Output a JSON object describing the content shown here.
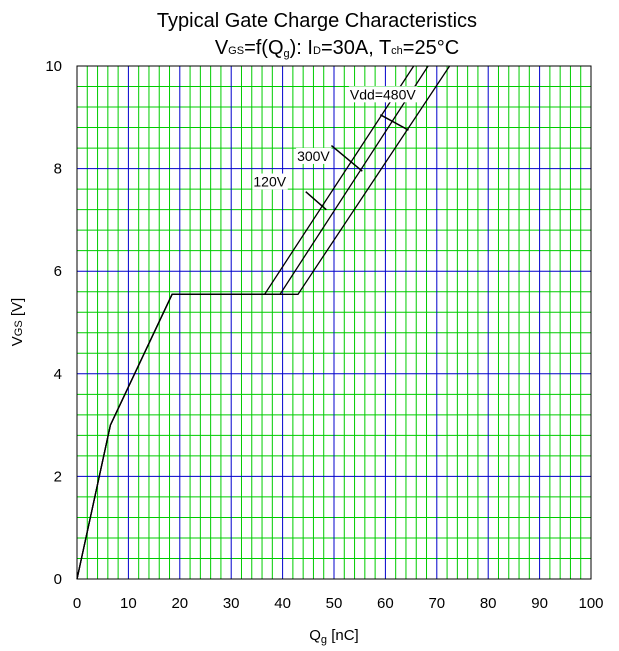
{
  "chart_data": {
    "type": "line",
    "title": "Typical Gate Charge Characteristics",
    "subtitle": {
      "vgs_main": "V",
      "vgs_sub": "GS",
      "eq": "=f(Q",
      "qg_sub": "g",
      "close": "): I",
      "id_sub": "D",
      "id_val": "=30A, T",
      "tch_sub": "ch",
      "tch_val": "=25°C"
    },
    "xlabel": {
      "main": "Q",
      "sub": "g",
      "rest": " [nC]"
    },
    "ylabel": {
      "main": "V",
      "sub": "GS",
      "rest": " [V]"
    },
    "xlim": [
      0,
      100
    ],
    "ylim": [
      0,
      10
    ],
    "xticks": [
      "0",
      "10",
      "20",
      "30",
      "40",
      "50",
      "60",
      "70",
      "80",
      "90",
      "100"
    ],
    "yticks": [
      "0",
      "2",
      "4",
      "6",
      "8",
      "10"
    ],
    "grid": true,
    "colors": {
      "major_grid": "#0000cc",
      "minor_grid": "#00cc00",
      "line": "#000000"
    },
    "series": [
      {
        "name": "120V",
        "x": [
          0,
          6.5,
          18.5,
          43,
          72.5
        ],
        "y": [
          0,
          3.0,
          5.55,
          5.55,
          10
        ]
      },
      {
        "name": "300V",
        "x": [
          0,
          6.5,
          18.5,
          39.5,
          68.3
        ],
        "y": [
          0,
          3.0,
          5.55,
          5.55,
          10
        ]
      },
      {
        "name": "Vdd=480V",
        "x": [
          0,
          6.5,
          18.5,
          36.5,
          65.5
        ],
        "y": [
          0,
          3.0,
          5.55,
          5.55,
          10
        ]
      }
    ],
    "annotations": [
      {
        "text": "Vdd=480V",
        "series": "Vdd=480V",
        "label_at": [
          59.5,
          9.35
        ],
        "line_from": [
          59,
          9.05
        ],
        "line_to": [
          64.5,
          8.75
        ]
      },
      {
        "text": "300V",
        "series": "300V",
        "label_at": [
          46,
          8.15
        ],
        "line_from": [
          49.5,
          8.45
        ],
        "line_to": [
          55.5,
          7.95
        ]
      },
      {
        "text": "120V",
        "series": "120V",
        "label_at": [
          37.5,
          7.65
        ],
        "line_from": [
          44.5,
          7.55
        ],
        "line_to": [
          48.5,
          7.2
        ]
      }
    ]
  }
}
